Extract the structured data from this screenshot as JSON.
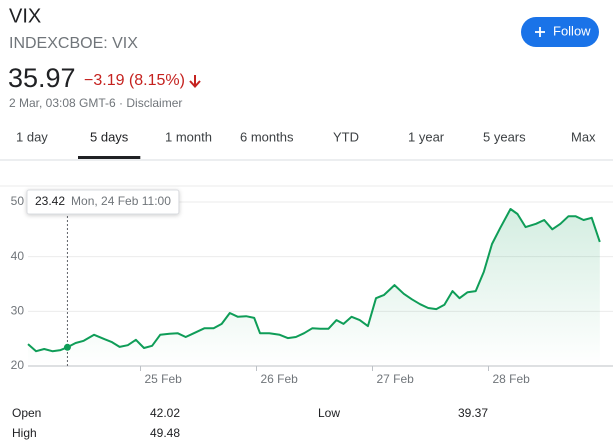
{
  "header": {
    "title": "VIX",
    "exchange": "INDEXCBOE: VIX",
    "price": "35.97",
    "change": "−3.19 (8.15%)",
    "change_color": "#c5221f",
    "timestamp": "2 Mar, 03:08 GMT-6 · Disclaimer"
  },
  "follow_button": {
    "label": "Follow",
    "color": "#1a73e8"
  },
  "tabs": [
    {
      "label": "1 day",
      "selected": false
    },
    {
      "label": "5 days",
      "selected": true
    },
    {
      "label": "1 month",
      "selected": false
    },
    {
      "label": "6 months",
      "selected": false
    },
    {
      "label": "YTD",
      "selected": false
    },
    {
      "label": "1 year",
      "selected": false
    },
    {
      "label": "5 years",
      "selected": false
    },
    {
      "label": "Max",
      "selected": false
    }
  ],
  "chart_data": {
    "type": "line",
    "color": "#0f9d58",
    "grid": true,
    "x": [
      24.03,
      24.1,
      24.17,
      24.24,
      24.31,
      24.37,
      24.44,
      24.51,
      24.6,
      24.69,
      24.75,
      24.82,
      24.89,
      24.96,
      25.03,
      25.1,
      25.17,
      25.25,
      25.32,
      25.39,
      25.46,
      25.55,
      25.63,
      25.7,
      25.77,
      25.84,
      25.91,
      25.98,
      26.03,
      26.11,
      26.2,
      26.27,
      26.34,
      26.41,
      26.48,
      26.55,
      26.62,
      26.69,
      26.75,
      26.82,
      26.89,
      26.96,
      27.03,
      27.1,
      27.19,
      27.27,
      27.34,
      27.41,
      27.48,
      27.55,
      27.62,
      27.69,
      27.75,
      27.82,
      27.89,
      27.96,
      28.03,
      28.1,
      28.19,
      28.25,
      28.32,
      28.41,
      28.48,
      28.55,
      28.62,
      28.69,
      28.75,
      28.82,
      28.89,
      28.96
    ],
    "values": [
      24.0,
      22.7,
      23.1,
      22.7,
      22.9,
      23.42,
      24.2,
      24.6,
      25.7,
      24.9,
      24.4,
      23.5,
      23.8,
      24.8,
      23.3,
      23.7,
      25.7,
      25.9,
      26.0,
      25.3,
      26.0,
      26.9,
      26.9,
      27.7,
      29.7,
      29.0,
      29.1,
      28.8,
      26.0,
      26.0,
      25.7,
      25.1,
      25.3,
      26.0,
      26.9,
      26.8,
      26.8,
      28.4,
      27.7,
      29.0,
      28.4,
      27.3,
      32.4,
      33.0,
      34.8,
      33.2,
      32.2,
      31.3,
      30.6,
      30.4,
      31.2,
      33.7,
      32.4,
      33.5,
      33.7,
      37.2,
      42.3,
      45.2,
      48.7,
      47.8,
      45.4,
      46.0,
      46.7,
      45.0,
      46.0,
      47.4,
      47.4,
      46.7,
      47.1,
      42.7
    ],
    "xlim": [
      24.03,
      28.97
    ],
    "ylim": [
      20,
      52
    ],
    "xticks": [
      {
        "value": 25,
        "label": "25 Feb"
      },
      {
        "value": 26,
        "label": "26 Feb"
      },
      {
        "value": 27,
        "label": "27 Feb"
      },
      {
        "value": 28,
        "label": "28 Feb"
      }
    ],
    "yticks": [
      20,
      30,
      40,
      50
    ],
    "tooltip": {
      "index": 5,
      "value": "23.42",
      "time": "Mon, 24 Feb 11:00"
    }
  },
  "stats": [
    {
      "label": "Open",
      "value": "42.02"
    },
    {
      "label": "High",
      "value": "49.48"
    },
    {
      "label": "Low",
      "value": "39.37"
    }
  ]
}
